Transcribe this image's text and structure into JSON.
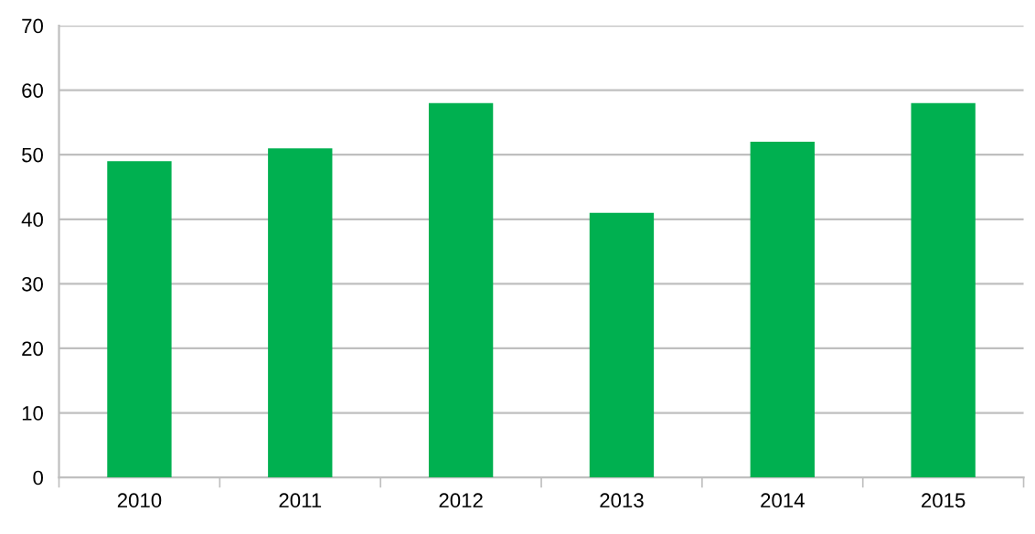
{
  "chart_data": {
    "type": "bar",
    "categories": [
      "2010",
      "2011",
      "2012",
      "2013",
      "2014",
      "2015"
    ],
    "values": [
      49,
      51,
      58,
      41,
      52,
      58
    ],
    "color": "#00b050",
    "ylim": [
      0,
      70
    ],
    "yticks": [
      0,
      10,
      20,
      30,
      40,
      50,
      60,
      70
    ],
    "grid": "y"
  }
}
